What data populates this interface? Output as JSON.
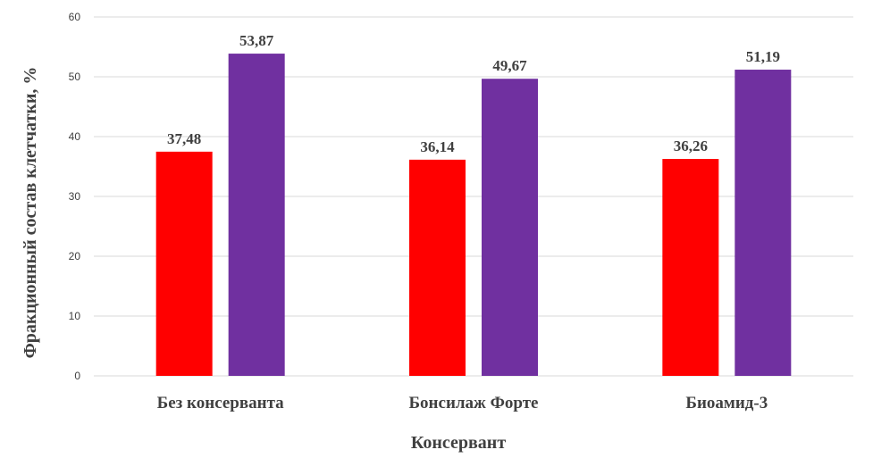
{
  "chart_data": {
    "type": "bar",
    "categories": [
      "Без консерванта",
      "Бонсилаж Форте",
      "Биоамид-3"
    ],
    "series": [
      {
        "values": [
          37.48,
          36.14,
          36.26
        ],
        "labels": [
          "37,48",
          "36,14",
          "36,26"
        ],
        "color": "#ff0000"
      },
      {
        "values": [
          53.87,
          49.67,
          51.19
        ],
        "labels": [
          "53,87",
          "49,67",
          "51,19"
        ],
        "color": "#7030a0"
      }
    ],
    "title": "",
    "xlabel": "Консервант",
    "ylabel": "Фракционный состав клетчатки, %",
    "ylim": [
      0,
      60
    ],
    "yticks": [
      "0",
      "10",
      "20",
      "30",
      "40",
      "50",
      "60"
    ],
    "grid": true,
    "legend": "none"
  }
}
